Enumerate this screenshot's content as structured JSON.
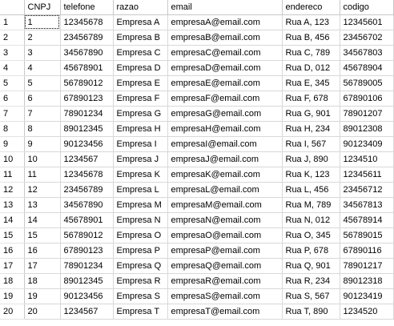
{
  "grid": {
    "columns": [
      "CNPJ",
      "telefone",
      "razao",
      "email",
      "endereco",
      "codigo"
    ],
    "rows": [
      {
        "n": "1",
        "cells": [
          "1",
          "12345678",
          "Empresa A",
          "empresaA@email.com",
          "Rua A, 123",
          "12345601"
        ]
      },
      {
        "n": "2",
        "cells": [
          "2",
          "23456789",
          "Empresa B",
          "empresaB@email.com",
          "Rua B, 456",
          "23456702"
        ]
      },
      {
        "n": "3",
        "cells": [
          "3",
          "34567890",
          "Empresa C",
          "empresaC@email.com",
          "Rua C, 789",
          "34567803"
        ]
      },
      {
        "n": "4",
        "cells": [
          "4",
          "45678901",
          "Empresa D",
          "empresaD@email.com",
          "Rua D, 012",
          "45678904"
        ]
      },
      {
        "n": "5",
        "cells": [
          "5",
          "56789012",
          "Empresa E",
          "empresaE@email.com",
          "Rua E, 345",
          "56789005"
        ]
      },
      {
        "n": "6",
        "cells": [
          "6",
          "67890123",
          "Empresa F",
          "empresaF@email.com",
          "Rua F, 678",
          "67890106"
        ]
      },
      {
        "n": "7",
        "cells": [
          "7",
          "78901234",
          "Empresa G",
          "empresaG@email.com",
          "Rua G, 901",
          "78901207"
        ]
      },
      {
        "n": "8",
        "cells": [
          "8",
          "89012345",
          "Empresa H",
          "empresaH@email.com",
          "Rua H, 234",
          "89012308"
        ]
      },
      {
        "n": "9",
        "cells": [
          "9",
          "90123456",
          "Empresa I",
          "empresaI@email.com",
          "Rua I, 567",
          "90123409"
        ]
      },
      {
        "n": "10",
        "cells": [
          "10",
          "1234567",
          "Empresa J",
          "empresaJ@email.com",
          "Rua J, 890",
          "1234510"
        ]
      },
      {
        "n": "11",
        "cells": [
          "11",
          "12345678",
          "Empresa K",
          "empresaK@email.com",
          "Rua K, 123",
          "12345611"
        ]
      },
      {
        "n": "12",
        "cells": [
          "12",
          "23456789",
          "Empresa L",
          "empresaL@email.com",
          "Rua L, 456",
          "23456712"
        ]
      },
      {
        "n": "13",
        "cells": [
          "13",
          "34567890",
          "Empresa M",
          "empresaM@email.com",
          "Rua M, 789",
          "34567813"
        ]
      },
      {
        "n": "14",
        "cells": [
          "14",
          "45678901",
          "Empresa N",
          "empresaN@email.com",
          "Rua N, 012",
          "45678914"
        ]
      },
      {
        "n": "15",
        "cells": [
          "15",
          "56789012",
          "Empresa O",
          "empresaO@email.com",
          "Rua O, 345",
          "56789015"
        ]
      },
      {
        "n": "16",
        "cells": [
          "16",
          "67890123",
          "Empresa P",
          "empresaP@email.com",
          "Rua P, 678",
          "67890116"
        ]
      },
      {
        "n": "17",
        "cells": [
          "17",
          "78901234",
          "Empresa Q",
          "empresaQ@email.com",
          "Rua Q, 901",
          "78901217"
        ]
      },
      {
        "n": "18",
        "cells": [
          "18",
          "89012345",
          "Empresa R",
          "empresaR@email.com",
          "Rua R, 234",
          "89012318"
        ]
      },
      {
        "n": "19",
        "cells": [
          "19",
          "90123456",
          "Empresa S",
          "empresaS@email.com",
          "Rua S, 567",
          "90123419"
        ]
      },
      {
        "n": "20",
        "cells": [
          "20",
          "1234567",
          "Empresa T",
          "empresaT@email.com",
          "Rua T, 890",
          "1234520"
        ]
      }
    ]
  }
}
